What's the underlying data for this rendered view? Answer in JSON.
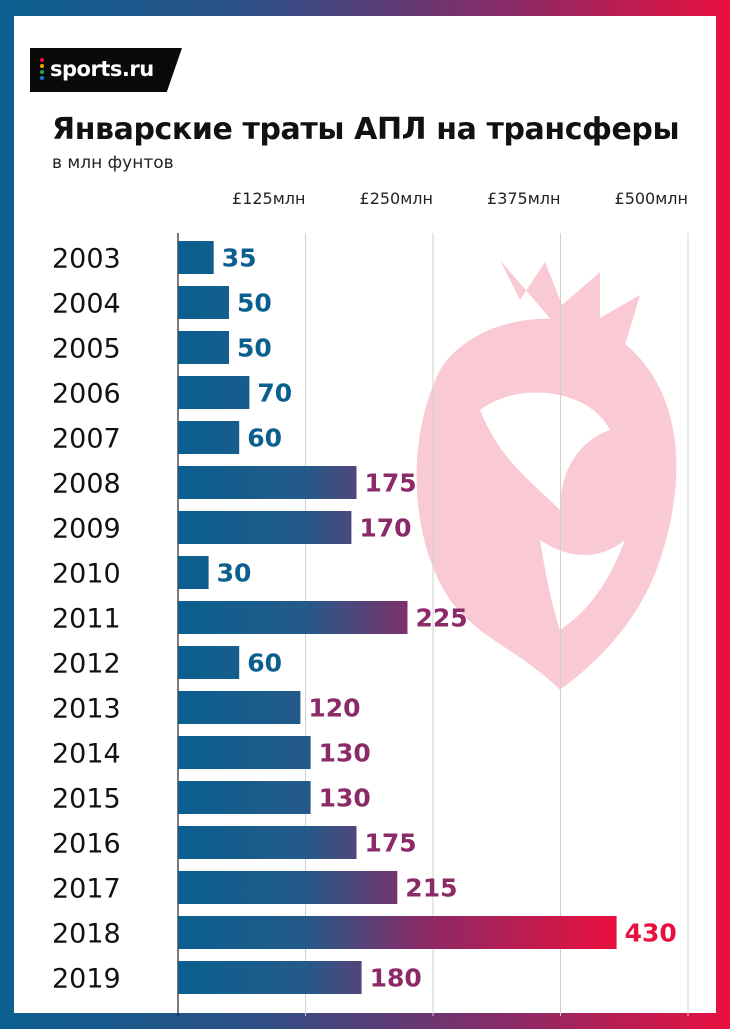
{
  "brand": {
    "name": "sports.ru",
    "dot_colors": [
      "#e8103f",
      "#f2a500",
      "#1fa84f",
      "#0a7fd0"
    ]
  },
  "colors": {
    "blue": "#0a5f8f",
    "magenta": "#8a2a67",
    "red": "#e8103f",
    "watermark": "#f6d6de"
  },
  "chart_data": {
    "type": "bar",
    "orientation": "horizontal",
    "title": "Январские траты АПЛ на трансферы",
    "subtitle": "в млн фунтов",
    "xlim": [
      0,
      500
    ],
    "grid": true,
    "xticks": [
      125,
      250,
      375,
      500
    ],
    "xtick_labels": [
      "£125млн",
      "£250млн",
      "£375млн",
      "£500млн"
    ],
    "categories": [
      "2003",
      "2004",
      "2005",
      "2006",
      "2007",
      "2008",
      "2009",
      "2010",
      "2011",
      "2012",
      "2013",
      "2014",
      "2015",
      "2016",
      "2017",
      "2018",
      "2019"
    ],
    "values": [
      35,
      50,
      50,
      70,
      60,
      175,
      170,
      30,
      225,
      60,
      120,
      130,
      130,
      175,
      215,
      430,
      180
    ],
    "labels": [
      "35",
      "50",
      "50",
      "70",
      "60",
      "175",
      "170",
      "30",
      "225",
      "60",
      "120",
      "130",
      "130",
      "175",
      "215",
      "430",
      "180"
    ]
  }
}
